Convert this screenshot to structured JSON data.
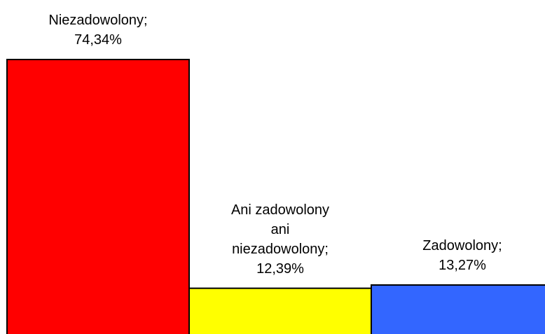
{
  "chart_data": {
    "type": "bar",
    "values": [
      74.34,
      12.39,
      13.27
    ],
    "value_labels": [
      "Niezadowolony; 74,34%",
      "Ani zadowolony ani niezadowolony; 12,39%",
      "Zadowolony; 13,27%"
    ],
    "colors": [
      "#ff0000",
      "#ffff00",
      "#3366ff"
    ]
  }
}
